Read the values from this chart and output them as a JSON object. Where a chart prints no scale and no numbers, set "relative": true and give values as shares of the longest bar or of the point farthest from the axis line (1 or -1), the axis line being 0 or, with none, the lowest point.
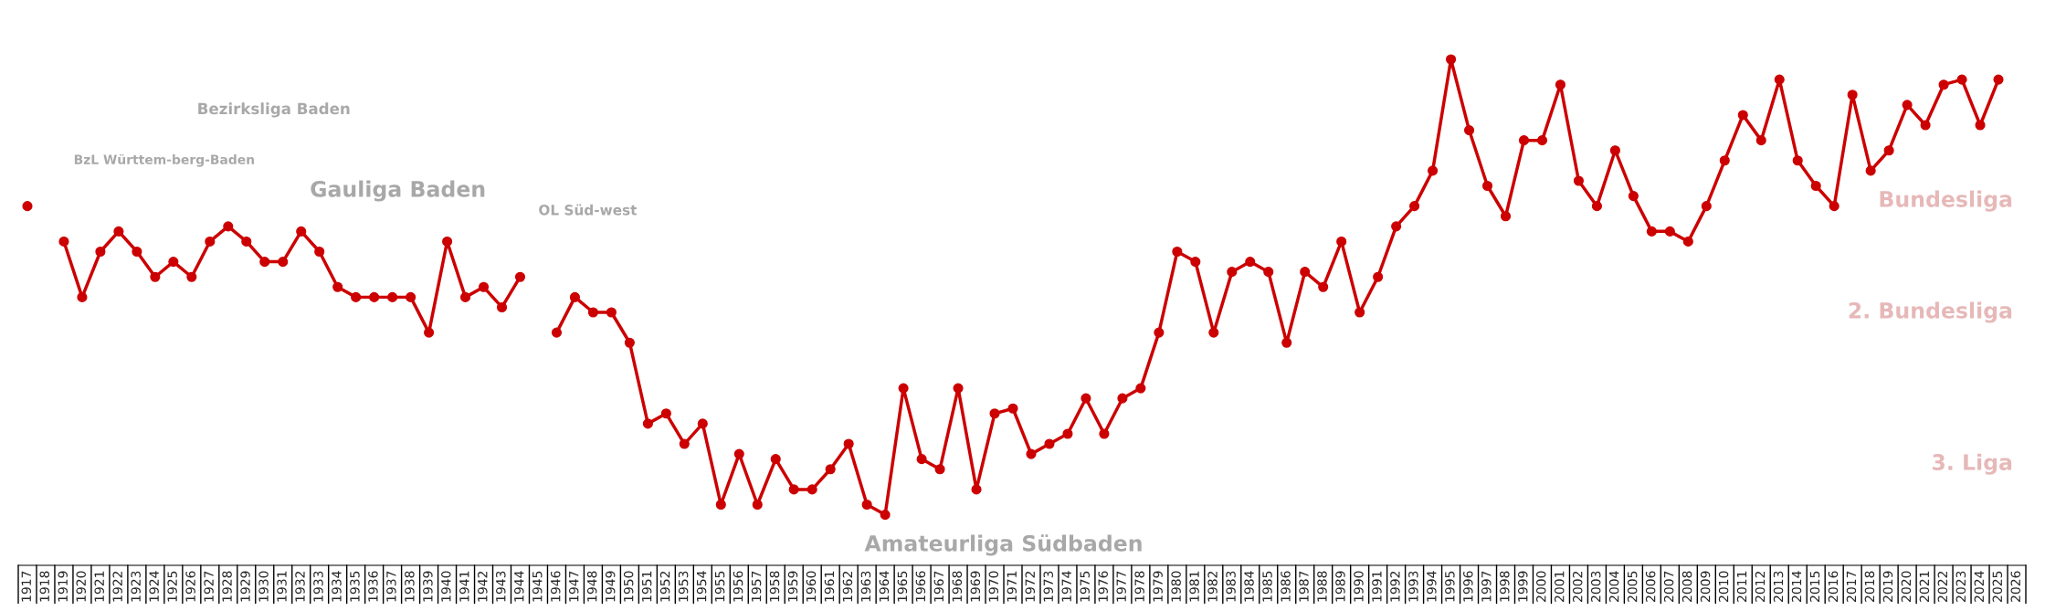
{
  "chart_data": {
    "type": "line",
    "relative": true,
    "marker": "circle",
    "line_style": "solid",
    "grid": false,
    "legend": false,
    "categories": [
      "1917",
      "1918",
      "1919",
      "1920",
      "1921",
      "1922",
      "1923",
      "1924",
      "1925",
      "1926",
      "1927",
      "1928",
      "1929",
      "1930",
      "1931",
      "1932",
      "1933",
      "1934",
      "1935",
      "1936",
      "1937",
      "1938",
      "1939",
      "1940",
      "1941",
      "1942",
      "1943",
      "1944",
      "1945",
      "1946",
      "1947",
      "1948",
      "1949",
      "1950",
      "1951",
      "1952",
      "1953",
      "1954",
      "1955",
      "1956",
      "1957",
      "1958",
      "1959",
      "1960",
      "1961",
      "1962",
      "1963",
      "1964",
      "1965",
      "1966",
      "1967",
      "1968",
      "1969",
      "1970",
      "1971",
      "1972",
      "1973",
      "1974",
      "1975",
      "1976",
      "1977",
      "1978",
      "1979",
      "1980",
      "1981",
      "1982",
      "1983",
      "1984",
      "1985",
      "1986",
      "1987",
      "1988",
      "1989",
      "1990",
      "1991",
      "1992",
      "1993",
      "1994",
      "1995",
      "1996",
      "1997",
      "1998",
      "1999",
      "2000",
      "2001",
      "2002",
      "2003",
      "2004",
      "2005",
      "2006",
      "2007",
      "2008",
      "2009",
      "2010",
      "2011",
      "2012",
      "2013",
      "2014",
      "2015",
      "2016",
      "2017",
      "2018",
      "2019",
      "2020",
      "2021",
      "2022",
      "2023",
      "2024",
      "2025",
      "2026"
    ],
    "series": [
      {
        "color": "#cc0000",
        "values": [
          0.71,
          null,
          0.64,
          0.53,
          0.62,
          0.66,
          0.62,
          0.57,
          0.6,
          0.57,
          0.64,
          0.67,
          0.64,
          0.6,
          0.6,
          0.66,
          0.62,
          0.55,
          0.53,
          0.53,
          0.53,
          0.53,
          0.46,
          0.64,
          0.53,
          0.55,
          0.51,
          0.57,
          null,
          0.46,
          0.53,
          0.5,
          0.5,
          0.44,
          0.28,
          0.3,
          0.24,
          0.28,
          0.12,
          0.22,
          0.12,
          0.21,
          0.15,
          0.15,
          0.19,
          0.24,
          0.12,
          0.1,
          0.35,
          0.21,
          0.19,
          0.35,
          0.15,
          0.3,
          0.31,
          0.22,
          0.24,
          0.26,
          0.33,
          0.26,
          0.33,
          0.35,
          0.46,
          0.62,
          0.6,
          0.46,
          0.58,
          0.6,
          0.58,
          0.44,
          0.58,
          0.55,
          0.64,
          0.5,
          0.57,
          0.67,
          0.71,
          0.78,
          1.0,
          0.86,
          0.75,
          0.69,
          0.84,
          0.84,
          0.95,
          0.76,
          0.71,
          0.82,
          0.73,
          0.66,
          0.66,
          0.64,
          0.71,
          0.8,
          0.89,
          0.84,
          0.96,
          0.8,
          0.75,
          0.71,
          0.93,
          0.78,
          0.82,
          0.91,
          0.87,
          0.95,
          0.96,
          0.87,
          0.96,
          null
        ]
      }
    ],
    "annotations": [
      "BzL Württem-berg-Baden",
      "Bezirksliga Baden",
      "Gauliga Baden",
      "OL Süd-west",
      "Amateurliga Südbaden",
      "Bundesliga",
      "2. Bundesliga",
      "3. Liga"
    ]
  }
}
